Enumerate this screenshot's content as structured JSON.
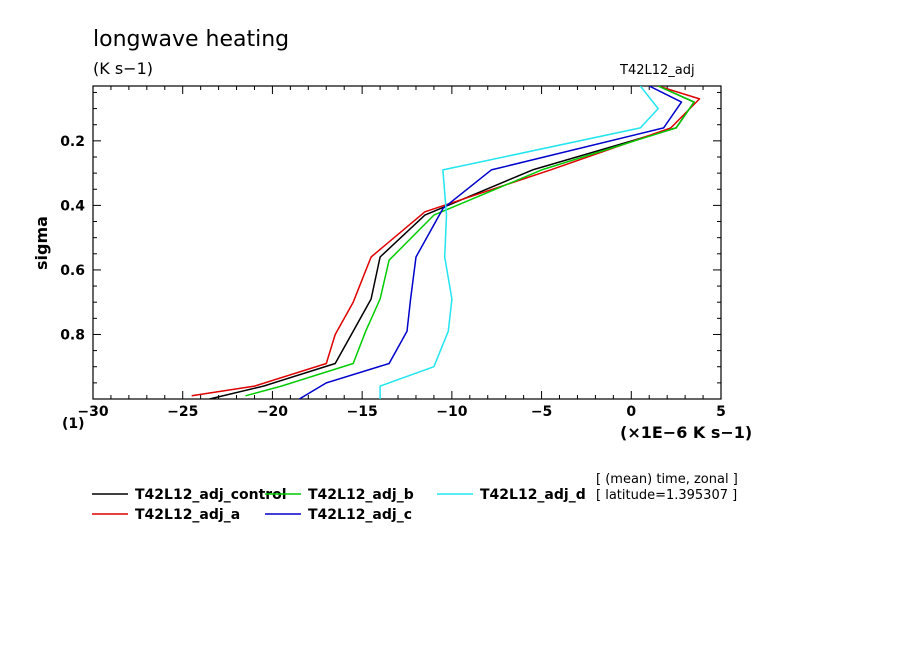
{
  "header": {
    "title": "longwave heating",
    "units": "(K s−1)",
    "run_label": "T42L12_adj"
  },
  "colors": {
    "T42L12_adj_control": "#000000",
    "T42L12_adj_a": "#e00000",
    "T42L12_adj_b": "#00cc00",
    "T42L12_adj_c": "#0000cc",
    "T42L12_adj_d": "#22e5f0"
  },
  "chart_data": {
    "type": "line",
    "title": "longwave heating",
    "subtitle": "(K s−1)",
    "ylabel": "sigma",
    "xlabel": "(×1E−6 K s−1)",
    "xlim": [
      -30,
      5
    ],
    "ylim": [
      1.0,
      0.03
    ],
    "y_inverted": true,
    "xticks": [
      -30,
      -25,
      -20,
      -15,
      -10,
      -5,
      0,
      5
    ],
    "xtick_labels": [
      "−30",
      "−25",
      "−20",
      "−15",
      "−10",
      "−5",
      "0",
      "5"
    ],
    "yticks": [
      0.2,
      0.4,
      0.6,
      0.8
    ],
    "ytick_labels": [
      "0.2",
      "0.4",
      "0.6",
      "0.8"
    ],
    "corner_label": "(1)",
    "annotation_lines": [
      "[ (mean) time, zonal ]",
      "[ latitude=1.395307 ]"
    ],
    "legend": [
      {
        "name": "T42L12_adj_control"
      },
      {
        "name": "T42L12_adj_b"
      },
      {
        "name": "T42L12_adj_d"
      },
      {
        "name": "T42L12_adj_a"
      },
      {
        "name": "T42L12_adj_c"
      }
    ],
    "series": [
      {
        "name": "T42L12_adj_control",
        "x": [
          1.5,
          3.5,
          2.5,
          -5.5,
          -11.5,
          -14,
          -14.5,
          -15.5,
          -16.5,
          -20.5,
          -23.5
        ],
        "y": [
          0.03,
          0.08,
          0.16,
          0.29,
          0.43,
          0.56,
          0.69,
          0.79,
          0.89,
          0.96,
          1.0
        ]
      },
      {
        "name": "T42L12_adj_a",
        "x": [
          1.5,
          3.8,
          2.2,
          -4.5,
          -11.5,
          -14.5,
          -15.5,
          -16.5,
          -17,
          -21,
          -24.5
        ],
        "y": [
          0.03,
          0.07,
          0.16,
          0.29,
          0.42,
          0.56,
          0.7,
          0.8,
          0.89,
          0.96,
          0.99
        ]
      },
      {
        "name": "T42L12_adj_b",
        "x": [
          1.5,
          3.5,
          2.5,
          -5.0,
          -11.0,
          -13.5,
          -14.0,
          -14.8,
          -15.5,
          -19.5,
          -21.5
        ],
        "y": [
          0.03,
          0.08,
          0.16,
          0.29,
          0.43,
          0.57,
          0.69,
          0.79,
          0.89,
          0.96,
          0.99
        ]
      },
      {
        "name": "T42L12_adj_c",
        "x": [
          1.0,
          2.8,
          1.8,
          -7.8,
          -10.5,
          -12.0,
          -12.3,
          -12.5,
          -13.5,
          -17.0,
          -18.5
        ],
        "y": [
          0.03,
          0.08,
          0.16,
          0.29,
          0.41,
          0.56,
          0.69,
          0.79,
          0.89,
          0.95,
          1.0
        ]
      },
      {
        "name": "T42L12_adj_d",
        "x": [
          0.5,
          1.5,
          0.5,
          -10.5,
          -10.3,
          -10.4,
          -10.0,
          -10.2,
          -11.0,
          -14.0,
          -14.0
        ],
        "y": [
          0.03,
          0.1,
          0.16,
          0.29,
          0.43,
          0.56,
          0.69,
          0.79,
          0.9,
          0.96,
          1.0
        ]
      }
    ]
  }
}
